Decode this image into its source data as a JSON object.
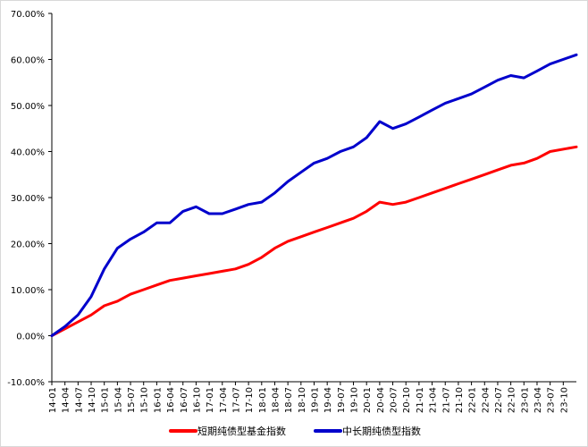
{
  "chart_data": {
    "type": "line",
    "title": "",
    "xlabel": "",
    "ylabel": "",
    "ylim": [
      -0.1,
      0.7
    ],
    "y_ticks": [
      "-10.00%",
      "0.00%",
      "10.00%",
      "20.00%",
      "30.00%",
      "40.00%",
      "50.00%",
      "60.00%",
      "70.00%"
    ],
    "y_tick_values": [
      -0.1,
      0.0,
      0.1,
      0.2,
      0.3,
      0.4,
      0.5,
      0.6,
      0.7
    ],
    "x_ticks": [
      "14-01",
      "14-04",
      "14-07",
      "14-10",
      "15-01",
      "15-04",
      "15-07",
      "15-10",
      "16-01",
      "16-04",
      "16-07",
      "16-10",
      "17-01",
      "17-04",
      "17-07",
      "17-10",
      "18-01",
      "18-04",
      "18-07",
      "18-10",
      "19-01",
      "19-04",
      "19-07",
      "19-10",
      "20-01",
      "20-04",
      "20-07",
      "20-10",
      "21-01",
      "21-04",
      "21-07",
      "21-10",
      "22-01",
      "22-04",
      "22-07",
      "22-10",
      "23-01",
      "23-04",
      "23-07",
      "23-10"
    ],
    "grid": false,
    "legend_position": "bottom",
    "series": [
      {
        "name": "短期纯债型基金指数",
        "color": "#ff0000",
        "values": [
          0.0,
          0.015,
          0.03,
          0.045,
          0.065,
          0.075,
          0.09,
          0.1,
          0.11,
          0.12,
          0.125,
          0.13,
          0.135,
          0.14,
          0.145,
          0.155,
          0.17,
          0.19,
          0.205,
          0.215,
          0.225,
          0.235,
          0.245,
          0.255,
          0.27,
          0.29,
          0.285,
          0.29,
          0.3,
          0.31,
          0.32,
          0.33,
          0.34,
          0.35,
          0.36,
          0.37,
          0.375,
          0.385,
          0.4,
          0.41
        ]
      },
      {
        "name": "中长期纯债型指数",
        "color": "#0000cc",
        "values": [
          0.0,
          0.02,
          0.045,
          0.085,
          0.145,
          0.19,
          0.21,
          0.225,
          0.245,
          0.245,
          0.27,
          0.28,
          0.265,
          0.265,
          0.275,
          0.285,
          0.29,
          0.31,
          0.335,
          0.355,
          0.375,
          0.385,
          0.4,
          0.41,
          0.43,
          0.465,
          0.45,
          0.46,
          0.475,
          0.49,
          0.505,
          0.515,
          0.525,
          0.54,
          0.555,
          0.565,
          0.56,
          0.575,
          0.59,
          0.61
        ]
      }
    ]
  }
}
